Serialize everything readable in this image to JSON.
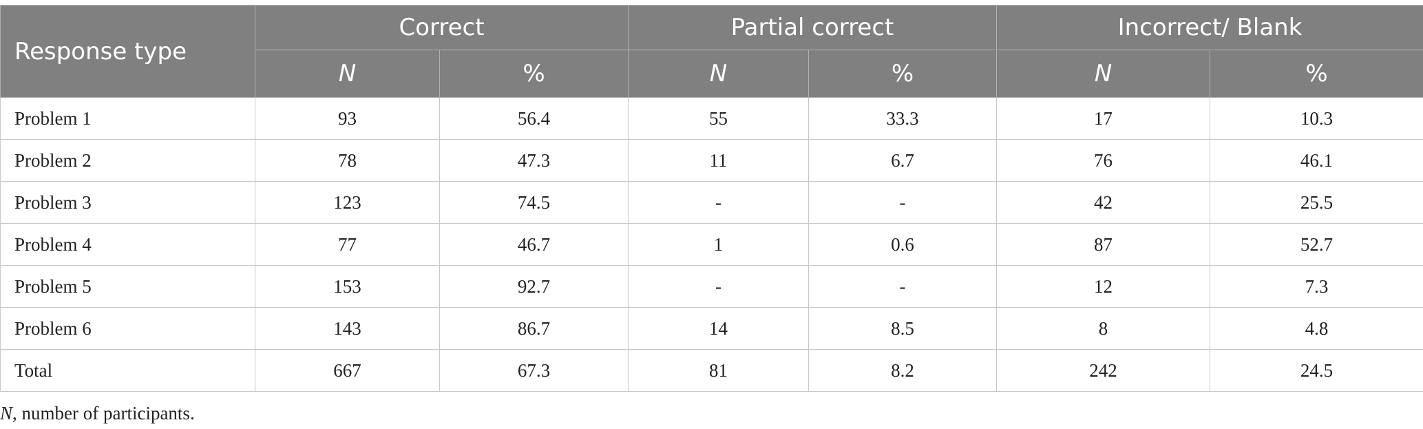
{
  "table": {
    "header": {
      "row_label": "Response type",
      "groups": [
        "Correct",
        "Partial correct",
        "Incorrect/ Blank"
      ],
      "subcolumns": [
        "N",
        "%",
        "N",
        "%",
        "N",
        "%"
      ]
    },
    "rows": [
      [
        "Problem 1",
        93,
        56.4,
        55,
        33.3,
        17,
        10.3
      ],
      [
        "Problem 2",
        78,
        47.3,
        11,
        6.7,
        76,
        46.1
      ],
      [
        "Problem 3",
        123,
        74.5,
        "-",
        "-",
        42,
        25.5
      ],
      [
        "Problem 4",
        77,
        46.7,
        1,
        0.6,
        87,
        52.7
      ],
      [
        "Problem 5",
        153,
        92.7,
        "-",
        "-",
        12,
        7.3
      ],
      [
        "Problem 6",
        143,
        86.7,
        14,
        8.5,
        8,
        4.8
      ],
      [
        "Total",
        667,
        67.3,
        81,
        8.2,
        242,
        24.5
      ]
    ]
  },
  "footnote": {
    "symbol": "N",
    "text": ", number of participants."
  }
}
